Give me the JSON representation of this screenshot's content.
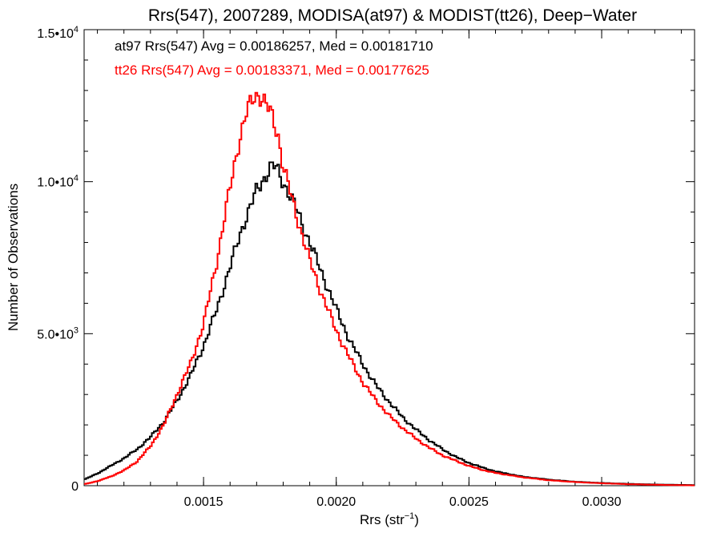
{
  "chart_data": {
    "type": "line",
    "title": "Rrs(547), 2007289, MODISA(at97) & MODIST(tt26), Deep−Water",
    "xlabel": "Rrs (str",
    "xlabel_sup": "−1",
    "xlabel_close": ")",
    "ylabel": "Number of Observations",
    "xlim": [
      0.00105,
      0.00335
    ],
    "ylim": [
      0,
      15000
    ],
    "x_ticks": [
      {
        "value": 0.0015,
        "label": "0.0015"
      },
      {
        "value": 0.002,
        "label": "0.0020"
      },
      {
        "value": 0.0025,
        "label": "0.0025"
      },
      {
        "value": 0.003,
        "label": "0.0030"
      }
    ],
    "y_ticks": [
      {
        "value": 0,
        "base": "0",
        "exp": ""
      },
      {
        "value": 5000,
        "base": "5.0•10",
        "exp": "3"
      },
      {
        "value": 10000,
        "base": "1.0•10",
        "exp": "4"
      },
      {
        "value": 15000,
        "base": "1.5•10",
        "exp": "4"
      }
    ],
    "grid": false,
    "legend_position": "top-left",
    "series": [
      {
        "name": "at97",
        "color": "#000000",
        "label": "at97 Rrs(547) Avg = 0.00186257, Med = 0.00181710",
        "x": [
          0.00105,
          0.0011,
          0.00115,
          0.0012,
          0.00125,
          0.0013,
          0.00135,
          0.0014,
          0.00145,
          0.0015,
          0.00155,
          0.0016,
          0.00165,
          0.0017,
          0.00172,
          0.00175,
          0.00177,
          0.0018,
          0.00185,
          0.0019,
          0.00195,
          0.002,
          0.00205,
          0.0021,
          0.00215,
          0.0022,
          0.00225,
          0.0023,
          0.00235,
          0.0024,
          0.00245,
          0.0025,
          0.00255,
          0.0026,
          0.0027,
          0.0028,
          0.0029,
          0.003,
          0.0031,
          0.0032,
          0.00335
        ],
        "y": [
          200,
          400,
          650,
          900,
          1200,
          1600,
          2100,
          2800,
          3600,
          4600,
          5800,
          7200,
          8600,
          9700,
          10000,
          10450,
          10500,
          10000,
          9100,
          8000,
          6900,
          5800,
          4800,
          4000,
          3300,
          2750,
          2250,
          1850,
          1500,
          1200,
          950,
          750,
          600,
          470,
          300,
          200,
          130,
          90,
          60,
          40,
          20
        ]
      },
      {
        "name": "tt26",
        "color": "#ff0000",
        "label": "tt26 Rrs(547) Avg = 0.00183371, Med = 0.00177625",
        "x": [
          0.00105,
          0.0011,
          0.00115,
          0.0012,
          0.00125,
          0.0013,
          0.00135,
          0.0014,
          0.00145,
          0.0015,
          0.00155,
          0.0016,
          0.00163,
          0.00166,
          0.00169,
          0.00171,
          0.00173,
          0.00175,
          0.00178,
          0.0018,
          0.00185,
          0.0019,
          0.00195,
          0.002,
          0.00205,
          0.0021,
          0.00215,
          0.0022,
          0.00225,
          0.0023,
          0.00235,
          0.0024,
          0.00245,
          0.0025,
          0.00255,
          0.0026,
          0.0027,
          0.0028,
          0.0029,
          0.003,
          0.0031,
          0.0032,
          0.00335
        ],
        "y": [
          50,
          150,
          300,
          500,
          800,
          1300,
          2000,
          3000,
          4000,
          5300,
          7400,
          9800,
          11200,
          12200,
          12800,
          12900,
          12600,
          12300,
          11600,
          10500,
          8900,
          7400,
          6200,
          5100,
          4200,
          3400,
          2800,
          2300,
          1900,
          1550,
          1250,
          1000,
          820,
          650,
          520,
          420,
          280,
          180,
          120,
          80,
          50,
          30,
          10
        ]
      }
    ]
  }
}
